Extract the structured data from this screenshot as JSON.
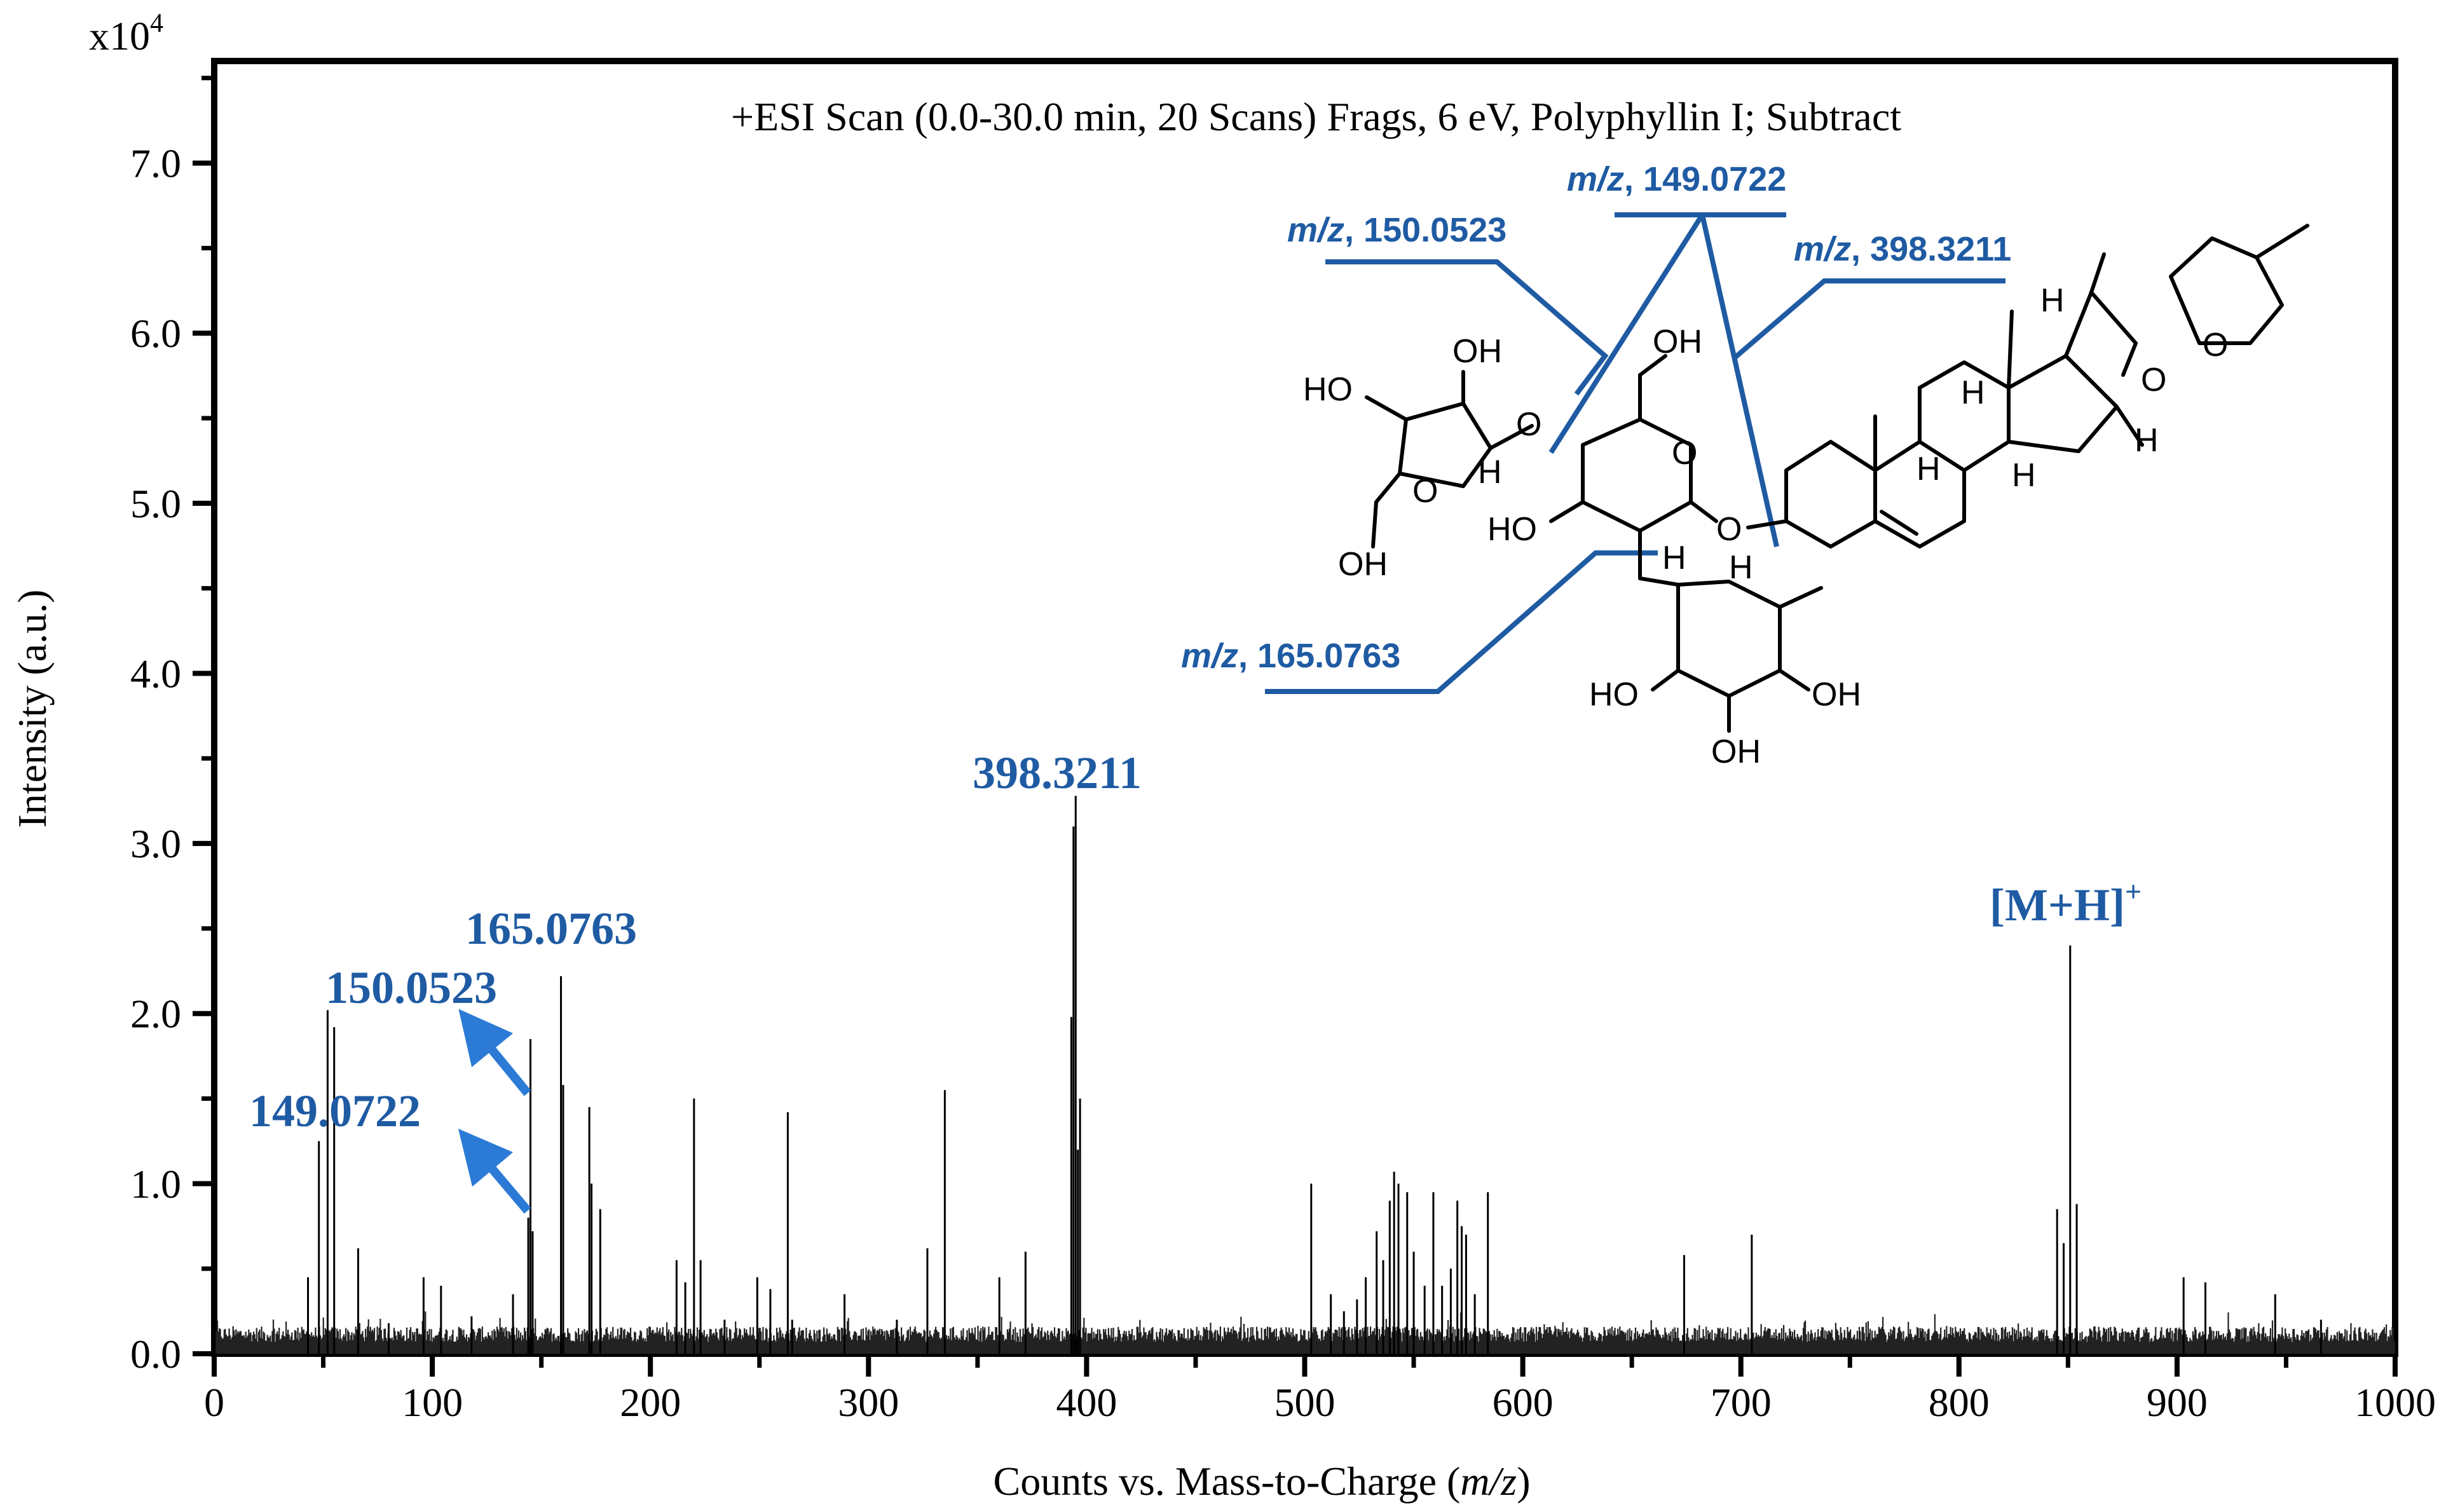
{
  "chart_data": {
    "type": "bar",
    "exponent_label": "x10",
    "exponent_sup": "4",
    "title": "+ESI Scan (0.0-30.0 min, 20 Scans) Frags, 6 eV, Polyphyllin I; Subtract",
    "xlabel_prefix": "Counts vs. Mass-to-Charge (",
    "xlabel_italic": "m/z",
    "xlabel_suffix": ")",
    "ylabel": "Intensity (a.u.)",
    "xlim": [
      0,
      1000
    ],
    "ylim": [
      0,
      7.6
    ],
    "xticks": [
      "0",
      "100",
      "200",
      "300",
      "400",
      "500",
      "600",
      "700",
      "800",
      "900",
      "1000"
    ],
    "yticks": [
      "0.0",
      "1.0",
      "2.0",
      "3.0",
      "4.0",
      "5.0",
      "6.0",
      "7.0"
    ],
    "peaks": [
      [
        43,
        0.45
      ],
      [
        48,
        1.25
      ],
      [
        52,
        2.02
      ],
      [
        55,
        1.92
      ],
      [
        66,
        0.62
      ],
      [
        80,
        0.18
      ],
      [
        96,
        0.45
      ],
      [
        104,
        0.4
      ],
      [
        118,
        0.22
      ],
      [
        137,
        0.35
      ],
      [
        144,
        0.8
      ],
      [
        145,
        1.85
      ],
      [
        146,
        0.72
      ],
      [
        159,
        2.22
      ],
      [
        160,
        1.58
      ],
      [
        172,
        1.45
      ],
      [
        173,
        1.0
      ],
      [
        177,
        0.85
      ],
      [
        212,
        0.55
      ],
      [
        216,
        0.42
      ],
      [
        220,
        1.5
      ],
      [
        223,
        0.55
      ],
      [
        234,
        0.2
      ],
      [
        249,
        0.45
      ],
      [
        255,
        0.38
      ],
      [
        263,
        1.42
      ],
      [
        265,
        0.2
      ],
      [
        289,
        0.35
      ],
      [
        313,
        0.2
      ],
      [
        327,
        0.62
      ],
      [
        335,
        1.55
      ],
      [
        360,
        0.45
      ],
      [
        372,
        0.6
      ],
      [
        393,
        1.98
      ],
      [
        394,
        3.1
      ],
      [
        395,
        3.28
      ],
      [
        396,
        1.2
      ],
      [
        397,
        1.5
      ],
      [
        503,
        1.0
      ],
      [
        512,
        0.35
      ],
      [
        518,
        0.25
      ],
      [
        524,
        0.32
      ],
      [
        528,
        0.45
      ],
      [
        533,
        0.72
      ],
      [
        536,
        0.55
      ],
      [
        539,
        0.9
      ],
      [
        541,
        1.07
      ],
      [
        543,
        1.0
      ],
      [
        547,
        0.95
      ],
      [
        550,
        0.6
      ],
      [
        555,
        0.4
      ],
      [
        559,
        0.95
      ],
      [
        563,
        0.4
      ],
      [
        567,
        0.5
      ],
      [
        570,
        0.9
      ],
      [
        572,
        0.75
      ],
      [
        574,
        0.7
      ],
      [
        578,
        0.35
      ],
      [
        584,
        0.95
      ],
      [
        674,
        0.58
      ],
      [
        705,
        0.7
      ],
      [
        845,
        0.85
      ],
      [
        848,
        0.65
      ],
      [
        851,
        2.4
      ],
      [
        854,
        0.88
      ],
      [
        903,
        0.45
      ],
      [
        913,
        0.42
      ],
      [
        945,
        0.35
      ],
      [
        966,
        0.2
      ]
    ],
    "peak_labels": [
      {
        "text": "398.3211",
        "mz": 398.3211
      },
      {
        "text": "165.0763",
        "mz": 165.0763
      },
      {
        "text": "150.0523",
        "mz": 150.0523
      },
      {
        "text": "149.0722",
        "mz": 149.0722
      },
      {
        "text": "[M+H]",
        "sup": "+"
      }
    ],
    "structure_labels": [
      {
        "italic": "m/z",
        "value": ", 149.0722"
      },
      {
        "italic": "m/z",
        "value": ", 150.0523"
      },
      {
        "italic": "m/z",
        "value": ", 398.3211"
      },
      {
        "italic": "m/z",
        "value": ", 165.0763"
      }
    ],
    "atom_labels": [
      "OH",
      "HO",
      "O",
      "H",
      "OH",
      "O",
      "HO",
      "O",
      "OH",
      "H",
      "O",
      "HO",
      "OH",
      "OH",
      "H",
      "H",
      "H",
      "H",
      "H",
      "O",
      "O",
      "H"
    ],
    "colors": {
      "label": "#1f5ba3",
      "arrow": "#2b7bd6",
      "axis": "#000000",
      "spectrum": "#000000"
    }
  }
}
